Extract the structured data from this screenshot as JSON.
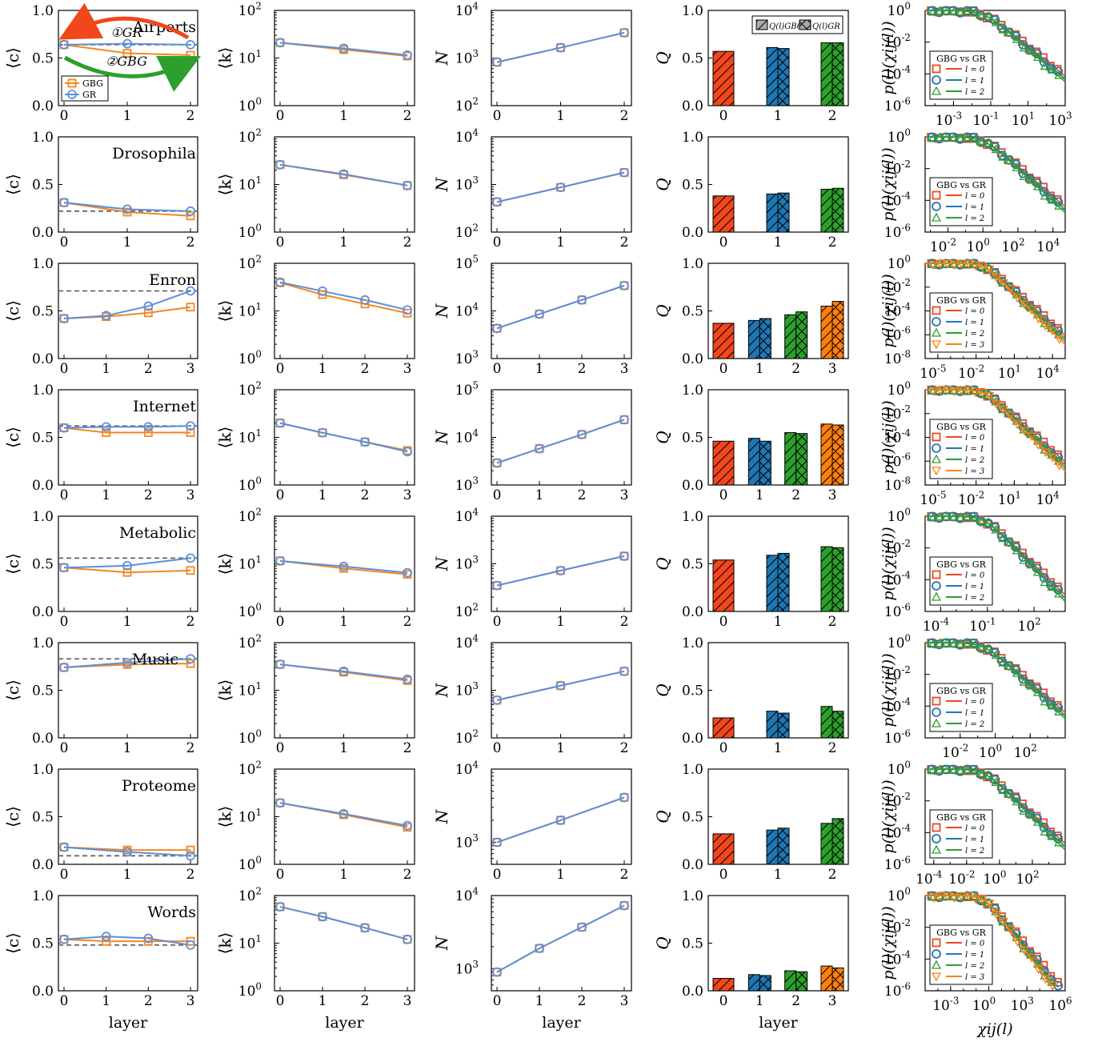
{
  "figure": {
    "xlabel": "layer",
    "ylabels": {
      "c": "⟨c⟩",
      "k": "⟨k⟩",
      "N": "N",
      "Q": "Q",
      "p": "p(l)(χij(l))"
    },
    "p_xlabel": "χij(l)",
    "legend_c": [
      "GBG",
      "GR"
    ],
    "legend_q": [
      "Q(l)GBG",
      "Q(l)GR"
    ],
    "legend_p_title": "GBG vs GR",
    "legend_p_entries": [
      "l = 0",
      "l = 1",
      "l = 2",
      "l = 3"
    ],
    "flow_labels": [
      "①GR",
      "②GBG"
    ],
    "colors": {
      "gbg": "#f5861f",
      "gr": "#5b8fdc",
      "dashed": "#666666",
      "arrow_red": "#f2461c",
      "arrow_green": "#2ca02c"
    },
    "layer_colors": [
      "#f2461c",
      "#1f77b4",
      "#2ca02c",
      "#ff7f0e"
    ]
  },
  "chart_data": [
    {
      "network": "Airports",
      "type": "line",
      "panel": "clustering",
      "ylabel": "⟨c⟩",
      "ylim": [
        0,
        1
      ],
      "layers": [
        0,
        1,
        2
      ],
      "gbg": [
        0.64,
        0.55,
        0.53
      ],
      "gr": [
        0.64,
        0.65,
        0.64
      ],
      "dashed": 0.64
    },
    {
      "network": "Airports",
      "type": "line",
      "panel": "degree",
      "ylabel": "⟨k⟩",
      "yscale": "log",
      "ylim": [
        1,
        100
      ],
      "layers": [
        0,
        1,
        2
      ],
      "gbg": [
        21,
        15,
        11
      ],
      "gr": [
        21,
        16,
        11.5
      ]
    },
    {
      "network": "Airports",
      "type": "line",
      "panel": "nodes",
      "ylabel": "N",
      "yscale": "log",
      "ylim": [
        100,
        10000
      ],
      "layers": [
        0,
        1,
        2
      ],
      "gbg": [
        820,
        1650,
        3400
      ],
      "gr": [
        820,
        1650,
        3400
      ]
    },
    {
      "network": "Airports",
      "type": "bar",
      "panel": "modularity",
      "ylabel": "Q",
      "ylim": [
        0,
        1
      ],
      "layers": [
        0,
        1,
        2
      ],
      "gbg": [
        0.57,
        0.61,
        0.66
      ],
      "gr": [
        null,
        0.6,
        0.66
      ]
    },
    {
      "network": "Airports",
      "type": "scatter",
      "panel": "weight-distribution",
      "yscale": "log",
      "xscale": "log",
      "ylim": [
        1e-06,
        1
      ],
      "xlim": [
        3e-05,
        1000
      ],
      "xticks": [
        "10⁻³",
        "10⁻¹",
        "10¹",
        "10³"
      ],
      "n_layers": 3
    },
    {
      "network": "Drosophila",
      "type": "line",
      "panel": "clustering",
      "ylabel": "⟨c⟩",
      "ylim": [
        0,
        1
      ],
      "layers": [
        0,
        1,
        2
      ],
      "gbg": [
        0.31,
        0.21,
        0.17
      ],
      "gr": [
        0.31,
        0.24,
        0.22
      ],
      "dashed": 0.22
    },
    {
      "network": "Drosophila",
      "type": "line",
      "panel": "degree",
      "ylabel": "⟨k⟩",
      "yscale": "log",
      "ylim": [
        1,
        100
      ],
      "layers": [
        0,
        1,
        2
      ],
      "gbg": [
        26,
        16,
        9.5
      ],
      "gr": [
        26,
        16.5,
        9.5
      ]
    },
    {
      "network": "Drosophila",
      "type": "line",
      "panel": "nodes",
      "ylabel": "N",
      "yscale": "log",
      "ylim": [
        100,
        10000
      ],
      "layers": [
        0,
        1,
        2
      ],
      "gbg": [
        430,
        870,
        1780
      ],
      "gr": [
        430,
        870,
        1780
      ]
    },
    {
      "network": "Drosophila",
      "type": "bar",
      "panel": "modularity",
      "ylabel": "Q",
      "ylim": [
        0,
        1
      ],
      "layers": [
        0,
        1,
        2
      ],
      "gbg": [
        0.38,
        0.4,
        0.45
      ],
      "gr": [
        null,
        0.41,
        0.46
      ]
    },
    {
      "network": "Drosophila",
      "type": "scatter",
      "panel": "weight-distribution",
      "yscale": "log",
      "xscale": "log",
      "ylim": [
        1e-06,
        1
      ],
      "xlim": [
        0.0005,
        50000
      ],
      "xticks": [
        "10⁻²",
        "10⁰",
        "10²",
        "10⁴"
      ],
      "n_layers": 3
    },
    {
      "network": "Enron",
      "type": "line",
      "panel": "clustering",
      "ylabel": "⟨c⟩",
      "ylim": [
        0,
        1
      ],
      "layers": [
        0,
        1,
        2,
        3
      ],
      "gbg": [
        0.42,
        0.44,
        0.48,
        0.54
      ],
      "gr": [
        0.42,
        0.45,
        0.55,
        0.71
      ],
      "dashed": 0.71
    },
    {
      "network": "Enron",
      "type": "line",
      "panel": "degree",
      "ylabel": "⟨k⟩",
      "yscale": "log",
      "ylim": [
        1,
        100
      ],
      "layers": [
        0,
        1,
        2,
        3
      ],
      "gbg": [
        39,
        22,
        14,
        9
      ],
      "gr": [
        40,
        26,
        17,
        10.5
      ]
    },
    {
      "network": "Enron",
      "type": "line",
      "panel": "nodes",
      "ylabel": "N",
      "yscale": "log",
      "ylim": [
        1000,
        100000
      ],
      "layers": [
        0,
        1,
        2,
        3
      ],
      "gbg": [
        4300,
        8600,
        17000,
        34000
      ],
      "gr": [
        4300,
        8600,
        17000,
        34000
      ]
    },
    {
      "network": "Enron",
      "type": "bar",
      "panel": "modularity",
      "ylabel": "Q",
      "ylim": [
        0,
        1
      ],
      "layers": [
        0,
        1,
        2,
        3
      ],
      "gbg": [
        0.37,
        0.4,
        0.46,
        0.55
      ],
      "gr": [
        null,
        0.42,
        0.49,
        0.6
      ]
    },
    {
      "network": "Enron",
      "type": "scatter",
      "panel": "weight-distribution",
      "yscale": "log",
      "xscale": "log",
      "ylim": [
        1e-08,
        1
      ],
      "xlim": [
        1e-06,
        100000
      ],
      "xticks": [
        "10⁻⁵",
        "10⁻²",
        "10¹",
        "10⁴"
      ],
      "n_layers": 4
    },
    {
      "network": "Internet",
      "type": "line",
      "panel": "clustering",
      "ylabel": "⟨c⟩",
      "ylim": [
        0,
        1
      ],
      "layers": [
        0,
        1,
        2,
        3
      ],
      "gbg": [
        0.6,
        0.55,
        0.55,
        0.55
      ],
      "gr": [
        0.6,
        0.61,
        0.61,
        0.62
      ],
      "dashed": 0.62
    },
    {
      "network": "Internet",
      "type": "line",
      "panel": "degree",
      "ylabel": "⟨k⟩",
      "yscale": "log",
      "ylim": [
        1,
        100
      ],
      "layers": [
        0,
        1,
        2,
        3
      ],
      "gbg": [
        20,
        12.5,
        8,
        5.3
      ],
      "gr": [
        20,
        12.5,
        8,
        5
      ]
    },
    {
      "network": "Internet",
      "type": "line",
      "panel": "nodes",
      "ylabel": "N",
      "yscale": "log",
      "ylim": [
        1000,
        100000
      ],
      "layers": [
        0,
        1,
        2,
        3
      ],
      "gbg": [
        2900,
        5800,
        11500,
        23500
      ],
      "gr": [
        2900,
        5800,
        11500,
        23500
      ]
    },
    {
      "network": "Internet",
      "type": "bar",
      "panel": "modularity",
      "ylabel": "Q",
      "ylim": [
        0,
        1
      ],
      "layers": [
        0,
        1,
        2,
        3
      ],
      "gbg": [
        0.46,
        0.49,
        0.55,
        0.64
      ],
      "gr": [
        null,
        0.46,
        0.54,
        0.63
      ]
    },
    {
      "network": "Internet",
      "type": "scatter",
      "panel": "weight-distribution",
      "yscale": "log",
      "xscale": "log",
      "ylim": [
        1e-08,
        1
      ],
      "xlim": [
        1e-06,
        100000
      ],
      "xticks": [
        "10⁻⁵",
        "10⁻²",
        "10¹",
        "10⁴"
      ],
      "n_layers": 4
    },
    {
      "network": "Metabolic",
      "type": "line",
      "panel": "clustering",
      "ylabel": "⟨c⟩",
      "ylim": [
        0,
        1
      ],
      "layers": [
        0,
        1,
        2
      ],
      "gbg": [
        0.46,
        0.41,
        0.43
      ],
      "gr": [
        0.46,
        0.48,
        0.56
      ],
      "dashed": 0.56
    },
    {
      "network": "Metabolic",
      "type": "line",
      "panel": "degree",
      "ylabel": "⟨k⟩",
      "yscale": "log",
      "ylim": [
        1,
        100
      ],
      "layers": [
        0,
        1,
        2
      ],
      "gbg": [
        11.5,
        8,
        6
      ],
      "gr": [
        11.5,
        8.8,
        6.5
      ]
    },
    {
      "network": "Metabolic",
      "type": "line",
      "panel": "nodes",
      "ylabel": "N",
      "yscale": "log",
      "ylim": [
        100,
        10000
      ],
      "layers": [
        0,
        1,
        2
      ],
      "gbg": [
        350,
        720,
        1450
      ],
      "gr": [
        350,
        720,
        1450
      ]
    },
    {
      "network": "Metabolic",
      "type": "bar",
      "panel": "modularity",
      "ylabel": "Q",
      "ylim": [
        0,
        1
      ],
      "layers": [
        0,
        1,
        2
      ],
      "gbg": [
        0.54,
        0.59,
        0.68
      ],
      "gr": [
        null,
        0.61,
        0.67
      ]
    },
    {
      "network": "Metabolic",
      "type": "scatter",
      "panel": "weight-distribution",
      "yscale": "log",
      "xscale": "log",
      "ylim": [
        1e-06,
        1
      ],
      "xlim": [
        1e-05,
        10000
      ],
      "xticks": [
        "10⁻⁴",
        "10⁻¹",
        "10²"
      ],
      "n_layers": 3
    },
    {
      "network": "Music",
      "type": "line",
      "panel": "clustering",
      "ylabel": "⟨c⟩",
      "ylim": [
        0,
        1
      ],
      "layers": [
        0,
        1,
        2
      ],
      "gbg": [
        0.74,
        0.77,
        0.78
      ],
      "gr": [
        0.74,
        0.79,
        0.83
      ],
      "dashed": 0.83
    },
    {
      "network": "Music",
      "type": "line",
      "panel": "degree",
      "ylabel": "⟨k⟩",
      "yscale": "log",
      "ylim": [
        1,
        100
      ],
      "layers": [
        0,
        1,
        2
      ],
      "gbg": [
        35,
        24,
        16
      ],
      "gr": [
        35,
        25,
        17
      ]
    },
    {
      "network": "Music",
      "type": "line",
      "panel": "nodes",
      "ylabel": "N",
      "yscale": "log",
      "ylim": [
        100,
        10000
      ],
      "layers": [
        0,
        1,
        2
      ],
      "gbg": [
        620,
        1250,
        2500
      ],
      "gr": [
        620,
        1250,
        2500
      ]
    },
    {
      "network": "Music",
      "type": "bar",
      "panel": "modularity",
      "ylabel": "Q",
      "ylim": [
        0,
        1
      ],
      "layers": [
        0,
        1,
        2
      ],
      "gbg": [
        0.21,
        0.28,
        0.33
      ],
      "gr": [
        null,
        0.26,
        0.28
      ]
    },
    {
      "network": "Music",
      "type": "scatter",
      "panel": "weight-distribution",
      "yscale": "log",
      "xscale": "log",
      "ylim": [
        1e-06,
        1
      ],
      "xlim": [
        0.0001,
        10000
      ],
      "xticks": [
        "10⁻²",
        "10⁰",
        "10²"
      ],
      "n_layers": 3
    },
    {
      "network": "Proteome",
      "type": "line",
      "panel": "clustering",
      "ylabel": "⟨c⟩",
      "ylim": [
        0,
        1
      ],
      "layers": [
        0,
        1,
        2
      ],
      "gbg": [
        0.18,
        0.15,
        0.15
      ],
      "gr": [
        0.18,
        0.13,
        0.09
      ],
      "dashed": 0.09
    },
    {
      "network": "Proteome",
      "type": "line",
      "panel": "degree",
      "ylabel": "⟨k⟩",
      "yscale": "log",
      "ylim": [
        1,
        100
      ],
      "layers": [
        0,
        1,
        2
      ],
      "gbg": [
        19.5,
        11,
        6
      ],
      "gr": [
        19.5,
        11.5,
        6.5
      ]
    },
    {
      "network": "Proteome",
      "type": "line",
      "panel": "nodes",
      "ylabel": "N",
      "yscale": "log",
      "ylim": [
        500,
        10000
      ],
      "layers": [
        0,
        1,
        2
      ],
      "gbg": [
        1000,
        2000,
        4100
      ],
      "gr": [
        1000,
        2000,
        4100
      ]
    },
    {
      "network": "Proteome",
      "type": "bar",
      "panel": "modularity",
      "ylabel": "Q",
      "ylim": [
        0,
        1
      ],
      "layers": [
        0,
        1,
        2
      ],
      "gbg": [
        0.32,
        0.36,
        0.43
      ],
      "gr": [
        null,
        0.38,
        0.48
      ]
    },
    {
      "network": "Proteome",
      "type": "scatter",
      "panel": "weight-distribution",
      "yscale": "log",
      "xscale": "log",
      "ylim": [
        1e-06,
        1
      ],
      "xlim": [
        3e-05,
        10000
      ],
      "xticks": [
        "10⁻⁴",
        "10⁻²",
        "10⁰",
        "10²"
      ],
      "n_layers": 3
    },
    {
      "network": "Words",
      "type": "line",
      "panel": "clustering",
      "ylabel": "⟨c⟩",
      "ylim": [
        0,
        1
      ],
      "layers": [
        0,
        1,
        2,
        3
      ],
      "gbg": [
        0.54,
        0.52,
        0.52,
        0.52
      ],
      "gr": [
        0.54,
        0.57,
        0.55,
        0.48
      ],
      "dashed": 0.48
    },
    {
      "network": "Words",
      "type": "line",
      "panel": "degree",
      "ylabel": "⟨k⟩",
      "yscale": "log",
      "ylim": [
        1,
        100
      ],
      "layers": [
        0,
        1,
        2,
        3
      ],
      "gbg": [
        58,
        36,
        21,
        12
      ],
      "gr": [
        58,
        36,
        21,
        12
      ]
    },
    {
      "network": "Words",
      "type": "line",
      "panel": "nodes",
      "ylabel": "N",
      "yscale": "log",
      "ylim": [
        500,
        10000
      ],
      "layers": [
        0,
        1,
        2,
        3
      ],
      "gbg": [
        900,
        1900,
        3700,
        7300
      ],
      "gr": [
        900,
        1900,
        3700,
        7300
      ]
    },
    {
      "network": "Words",
      "type": "bar",
      "panel": "modularity",
      "ylabel": "Q",
      "ylim": [
        0,
        1
      ],
      "layers": [
        0,
        1,
        2,
        3
      ],
      "gbg": [
        0.13,
        0.17,
        0.21,
        0.26
      ],
      "gr": [
        null,
        0.16,
        0.2,
        0.24
      ]
    },
    {
      "network": "Words",
      "type": "scatter",
      "panel": "weight-distribution",
      "yscale": "log",
      "xscale": "log",
      "ylim": [
        1e-06,
        1
      ],
      "xlim": [
        1e-05,
        1000000
      ],
      "xticks": [
        "10⁻³",
        "10⁰",
        "10³",
        "10⁶"
      ],
      "n_layers": 4
    }
  ]
}
